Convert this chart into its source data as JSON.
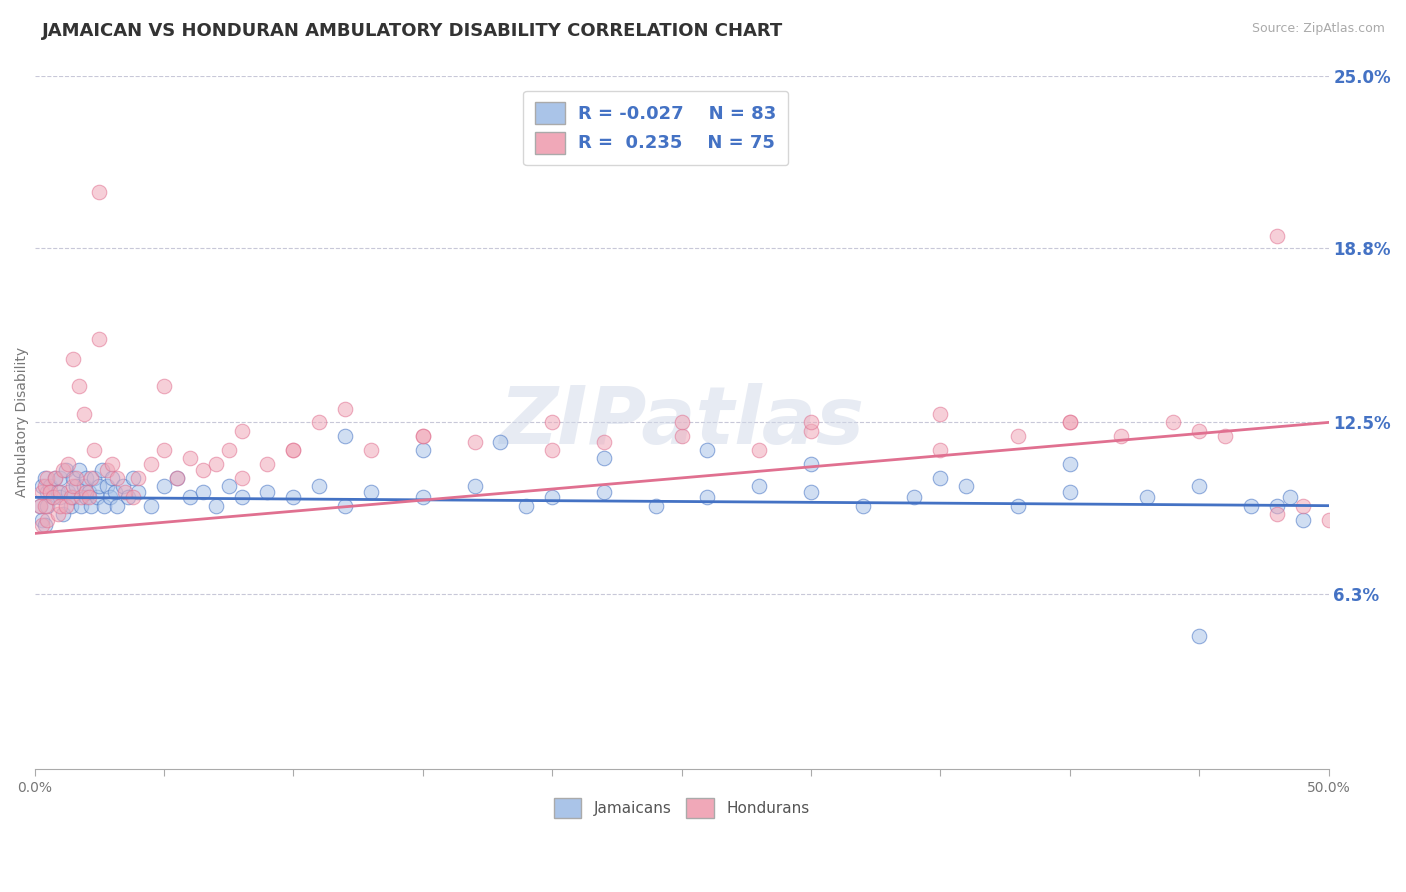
{
  "title": "JAMAICAN VS HONDURAN AMBULATORY DISABILITY CORRELATION CHART",
  "source": "Source: ZipAtlas.com",
  "ylabel": "Ambulatory Disability",
  "xlim": [
    0.0,
    50.0
  ],
  "ylim": [
    0.0,
    25.0
  ],
  "ytick_right_labels": [
    "6.3%",
    "12.5%",
    "18.8%",
    "25.0%"
  ],
  "ytick_right_values": [
    6.3,
    12.5,
    18.8,
    25.0
  ],
  "jamaican_color": "#aac4e8",
  "honduran_color": "#f0a8b8",
  "jamaican_line_color": "#4472c4",
  "honduran_line_color": "#e07090",
  "jamaican_R": -0.027,
  "jamaican_N": 83,
  "honduran_R": 0.235,
  "honduran_N": 75,
  "legend_R_color": "#4472c4",
  "background_color": "#ffffff",
  "grid_color": "#c8c8d8",
  "title_fontsize": 13,
  "label_fontsize": 10,
  "tick_fontsize": 10,
  "jamaican_x": [
    0.2,
    0.3,
    0.3,
    0.4,
    0.4,
    0.5,
    0.5,
    0.6,
    0.7,
    0.8,
    0.9,
    1.0,
    1.0,
    1.1,
    1.2,
    1.3,
    1.4,
    1.5,
    1.5,
    1.6,
    1.7,
    1.8,
    1.9,
    2.0,
    2.0,
    2.1,
    2.2,
    2.3,
    2.4,
    2.5,
    2.6,
    2.7,
    2.8,
    2.9,
    3.0,
    3.1,
    3.2,
    3.4,
    3.6,
    3.8,
    4.0,
    4.5,
    5.0,
    5.5,
    6.0,
    6.5,
    7.0,
    7.5,
    8.0,
    9.0,
    10.0,
    11.0,
    12.0,
    13.0,
    15.0,
    17.0,
    19.0,
    20.0,
    22.0,
    24.0,
    26.0,
    28.0,
    30.0,
    32.0,
    34.0,
    36.0,
    38.0,
    40.0,
    43.0,
    45.0,
    47.0,
    48.5,
    12.0,
    15.0,
    18.0,
    22.0,
    26.0,
    30.0,
    35.0,
    40.0,
    45.0,
    48.0,
    49.0
  ],
  "jamaican_y": [
    9.5,
    10.2,
    9.0,
    10.5,
    8.8,
    10.0,
    9.5,
    10.2,
    9.8,
    10.5,
    10.0,
    9.8,
    10.5,
    9.2,
    10.8,
    10.0,
    9.5,
    10.5,
    9.8,
    10.2,
    10.8,
    9.5,
    10.2,
    10.5,
    9.8,
    10.0,
    9.5,
    10.5,
    9.8,
    10.2,
    10.8,
    9.5,
    10.2,
    9.8,
    10.5,
    10.0,
    9.5,
    10.2,
    9.8,
    10.5,
    10.0,
    9.5,
    10.2,
    10.5,
    9.8,
    10.0,
    9.5,
    10.2,
    9.8,
    10.0,
    9.8,
    10.2,
    9.5,
    10.0,
    9.8,
    10.2,
    9.5,
    9.8,
    10.0,
    9.5,
    9.8,
    10.2,
    10.0,
    9.5,
    9.8,
    10.2,
    9.5,
    10.0,
    9.8,
    10.2,
    9.5,
    9.8,
    12.0,
    11.5,
    11.8,
    11.2,
    11.5,
    11.0,
    10.5,
    11.0,
    4.8,
    9.5,
    9.0
  ],
  "honduran_x": [
    0.2,
    0.3,
    0.3,
    0.4,
    0.4,
    0.5,
    0.5,
    0.6,
    0.7,
    0.8,
    0.9,
    1.0,
    1.0,
    1.1,
    1.2,
    1.3,
    1.4,
    1.5,
    1.5,
    1.6,
    1.7,
    1.8,
    1.9,
    2.0,
    2.1,
    2.2,
    2.3,
    2.5,
    2.8,
    3.0,
    3.2,
    3.5,
    3.8,
    4.0,
    4.5,
    5.0,
    5.5,
    6.0,
    6.5,
    7.0,
    7.5,
    8.0,
    9.0,
    10.0,
    11.0,
    12.0,
    13.0,
    15.0,
    17.0,
    20.0,
    22.0,
    25.0,
    28.0,
    30.0,
    35.0,
    38.0,
    40.0,
    42.0,
    44.0,
    46.0,
    48.0,
    49.0,
    2.5,
    5.0,
    8.0,
    10.0,
    15.0,
    20.0,
    25.0,
    30.0,
    35.0,
    40.0,
    45.0,
    48.0,
    50.0
  ],
  "honduran_y": [
    9.5,
    10.0,
    8.8,
    10.2,
    9.5,
    10.5,
    9.0,
    10.0,
    9.8,
    10.5,
    9.2,
    10.0,
    9.5,
    10.8,
    9.5,
    11.0,
    9.8,
    14.8,
    10.2,
    10.5,
    13.8,
    9.8,
    12.8,
    10.0,
    9.8,
    10.5,
    11.5,
    15.5,
    10.8,
    11.0,
    10.5,
    10.0,
    9.8,
    10.5,
    11.0,
    11.5,
    10.5,
    11.2,
    10.8,
    11.0,
    11.5,
    10.5,
    11.0,
    11.5,
    12.5,
    13.0,
    11.5,
    12.0,
    11.8,
    11.5,
    11.8,
    12.0,
    11.5,
    12.2,
    11.5,
    12.0,
    12.5,
    12.0,
    12.5,
    12.0,
    9.2,
    9.5,
    20.8,
    13.8,
    12.2,
    11.5,
    12.0,
    12.5,
    12.5,
    12.5,
    12.8,
    12.5,
    12.2,
    19.2,
    9.0
  ]
}
